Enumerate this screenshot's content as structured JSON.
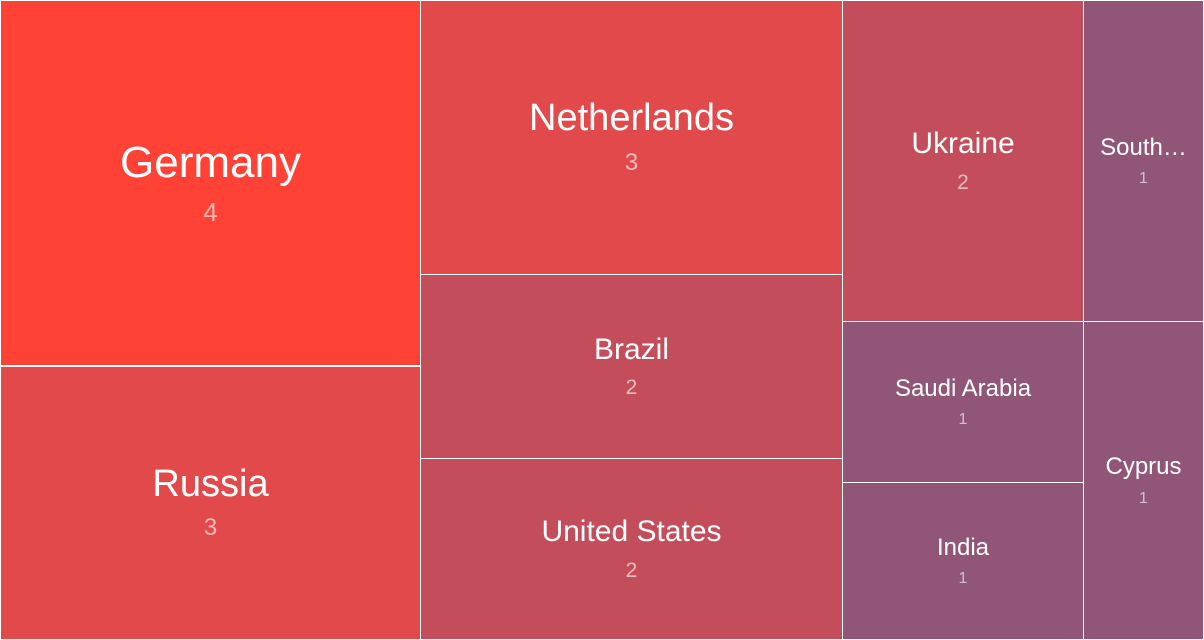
{
  "chart_data": {
    "type": "treemap",
    "title": "",
    "items": [
      {
        "label": "Germany",
        "value": 4,
        "color": "#ff4136"
      },
      {
        "label": "Netherlands",
        "value": 3,
        "color": "#e2494a"
      },
      {
        "label": "Russia",
        "value": 3,
        "color": "#e2494a"
      },
      {
        "label": "Brazil",
        "value": 2,
        "color": "#c44d5c"
      },
      {
        "label": "United States",
        "value": 2,
        "color": "#c44d5c"
      },
      {
        "label": "Ukraine",
        "value": 2,
        "color": "#c44d5c"
      },
      {
        "label": "South…",
        "value": 1,
        "color": "#915577"
      },
      {
        "label": "Saudi Arabia",
        "value": 1,
        "color": "#915577"
      },
      {
        "label": "India",
        "value": 1,
        "color": "#915577"
      },
      {
        "label": "Cyprus",
        "value": 1,
        "color": "#915577"
      }
    ]
  }
}
